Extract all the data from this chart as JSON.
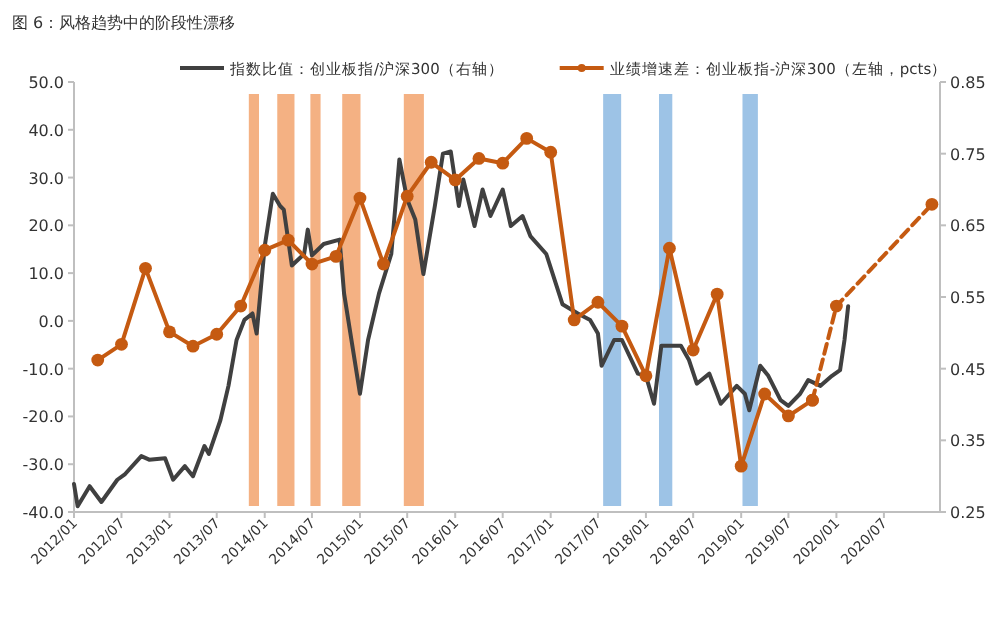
{
  "chart_data": {
    "type": "line",
    "title": "图 6：风格趋势中的阶段性漂移",
    "xlim": [
      "2012-01",
      "2021-02"
    ],
    "xticks": [
      {
        "value": "2012-01",
        "label": "2012/01"
      },
      {
        "value": "2012-07",
        "label": "2012/07"
      },
      {
        "value": "2013-01",
        "label": "2013/01"
      },
      {
        "value": "2013-07",
        "label": "2013/07"
      },
      {
        "value": "2014-01",
        "label": "2014/01"
      },
      {
        "value": "2014-07",
        "label": "2014/07"
      },
      {
        "value": "2015-01",
        "label": "2015/01"
      },
      {
        "value": "2015-07",
        "label": "2015/07"
      },
      {
        "value": "2016-01",
        "label": "2016/01"
      },
      {
        "value": "2016-07",
        "label": "2016/07"
      },
      {
        "value": "2017-01",
        "label": "2017/01"
      },
      {
        "value": "2017-07",
        "label": "2017/07"
      },
      {
        "value": "2018-01",
        "label": "2018/01"
      },
      {
        "value": "2018-07",
        "label": "2018/07"
      },
      {
        "value": "2019-01",
        "label": "2019/01"
      },
      {
        "value": "2019-07",
        "label": "2019/07"
      },
      {
        "value": "2020-01",
        "label": "2020/01"
      },
      {
        "value": "2020-07",
        "label": "2020/07"
      }
    ],
    "ylim": [
      -40,
      50
    ],
    "yticks": [
      {
        "value": 50,
        "label": "50.0"
      },
      {
        "value": 40,
        "label": "40.0"
      },
      {
        "value": 30,
        "label": "30.0"
      },
      {
        "value": 20,
        "label": "20.0"
      },
      {
        "value": 10,
        "label": "10.0"
      },
      {
        "value": 0,
        "label": "0.0"
      },
      {
        "value": -10,
        "label": "-10.0"
      },
      {
        "value": -20,
        "label": "-20.0"
      },
      {
        "value": -30,
        "label": "-30.0"
      },
      {
        "value": -40,
        "label": "-40.0"
      }
    ],
    "y2lim": [
      0.25,
      0.85
    ],
    "y2ticks": [
      0.25,
      0.35,
      0.45,
      0.55,
      0.65,
      0.75,
      0.85
    ],
    "grid": false,
    "legend": "top",
    "bands": [
      {
        "axis": "x",
        "from": "2013-11-01",
        "to": "2013-12-10",
        "color": "#f4b183"
      },
      {
        "axis": "x",
        "from": "2014-02-18",
        "to": "2014-04-25",
        "color": "#f4b183"
      },
      {
        "axis": "x",
        "from": "2014-06-25",
        "to": "2014-08-03",
        "color": "#f4b183"
      },
      {
        "axis": "x",
        "from": "2014-10-25",
        "to": "2015-01-03",
        "color": "#f4b183"
      },
      {
        "axis": "x",
        "from": "2015-06-18",
        "to": "2015-09-03",
        "color": "#f4b183"
      },
      {
        "axis": "x",
        "from": "2017-07-21",
        "to": "2017-09-28",
        "color": "#9dc3e6"
      },
      {
        "axis": "x",
        "from": "2018-02-20",
        "to": "2018-04-12",
        "color": "#9dc3e6"
      },
      {
        "axis": "x",
        "from": "2019-01-06",
        "to": "2019-03-06",
        "color": "#9dc3e6"
      }
    ],
    "series": [
      {
        "name": "指数比值：创业板指/沪深300（右轴）",
        "color": "#404040",
        "axis": "y2",
        "marker": "none",
        "line_style": "solid",
        "x": [
          "2012-01-01",
          "2012-01-15",
          "2012-03-01",
          "2012-04-15",
          "2012-06-15",
          "2012-07-15",
          "2012-09-15",
          "2012-10-15",
          "2012-12-15",
          "2013-01-15",
          "2013-03-01",
          "2013-04-01",
          "2013-05-15",
          "2013-06-01",
          "2013-07-15",
          "2013-08-15",
          "2013-09-15",
          "2013-10-15",
          "2013-11-15",
          "2013-12-01",
          "2014-01-01",
          "2014-02-01",
          "2014-03-01",
          "2014-03-15",
          "2014-04-15",
          "2014-06-01",
          "2014-06-15",
          "2014-07-01",
          "2014-08-15",
          "2014-10-15",
          "2014-11-01",
          "2015-01-01",
          "2015-02-01",
          "2015-03-15",
          "2015-05-01",
          "2015-06-01",
          "2015-07-01",
          "2015-08-01",
          "2015-09-01",
          "2015-10-15",
          "2015-11-15",
          "2015-12-15",
          "2016-01-15",
          "2016-02-01",
          "2016-03-15",
          "2016-04-15",
          "2016-05-15",
          "2016-07-01",
          "2016-08-01",
          "2016-09-15",
          "2016-10-15",
          "2016-12-15",
          "2017-02-15",
          "2017-04-15",
          "2017-06-01",
          "2017-07-01",
          "2017-07-15",
          "2017-09-01",
          "2017-10-01",
          "2017-12-01",
          "2018-01-01",
          "2018-02-01",
          "2018-03-01",
          "2018-05-15",
          "2018-06-15",
          "2018-07-15",
          "2018-09-01",
          "2018-10-15",
          "2018-12-15",
          "2019-01-15",
          "2019-02-01",
          "2019-03-15",
          "2019-04-15",
          "2019-06-01",
          "2019-07-01",
          "2019-08-15",
          "2019-09-15",
          "2019-11-01",
          "2019-12-15",
          "2020-01-15",
          "2020-02-01",
          "2020-02-15"
        ],
        "values": [
          0.289,
          0.258,
          0.286,
          0.264,
          0.295,
          0.303,
          0.328,
          0.323,
          0.325,
          0.295,
          0.314,
          0.3,
          0.342,
          0.331,
          0.378,
          0.426,
          0.49,
          0.518,
          0.527,
          0.499,
          0.621,
          0.694,
          0.677,
          0.672,
          0.594,
          0.61,
          0.644,
          0.608,
          0.624,
          0.63,
          0.555,
          0.415,
          0.49,
          0.555,
          0.61,
          0.742,
          0.686,
          0.658,
          0.582,
          0.677,
          0.75,
          0.753,
          0.677,
          0.714,
          0.649,
          0.7,
          0.663,
          0.7,
          0.649,
          0.663,
          0.635,
          0.61,
          0.54,
          0.527,
          0.518,
          0.499,
          0.454,
          0.49,
          0.49,
          0.443,
          0.44,
          0.401,
          0.482,
          0.482,
          0.462,
          0.429,
          0.443,
          0.401,
          0.426,
          0.415,
          0.392,
          0.454,
          0.44,
          0.406,
          0.398,
          0.415,
          0.434,
          0.426,
          0.44,
          0.448,
          0.49,
          0.537
        ]
      },
      {
        "name": "业绩增速差：创业板指-沪深300（左轴，pcts）",
        "color": "#c55a11",
        "marker": "circle",
        "line_style": "solid",
        "x": [
          "2012-04",
          "2012-07",
          "2012-10",
          "2013-01",
          "2013-04",
          "2013-07",
          "2013-10",
          "2014-01",
          "2014-04",
          "2014-07",
          "2014-10",
          "2015-01",
          "2015-04",
          "2015-07",
          "2015-10",
          "2016-01",
          "2016-04",
          "2016-07",
          "2016-10",
          "2017-01",
          "2017-04",
          "2017-07",
          "2017-10",
          "2018-01",
          "2018-04",
          "2018-07",
          "2018-10",
          "2019-01",
          "2019-04",
          "2019-07",
          "2019-10"
        ],
        "values": [
          -8.2,
          -4.9,
          11,
          -2.3,
          -5.3,
          -2.8,
          3.1,
          14.8,
          16.9,
          11.9,
          13.5,
          25.7,
          11.9,
          26.1,
          33.2,
          29.5,
          34,
          33,
          38.2,
          35.3,
          0.2,
          3.9,
          -1.1,
          -11.5,
          15.2,
          -6.1,
          5.6,
          -30.4,
          -15.3,
          -19.9,
          -16.6
        ]
      },
      {
        "color": "#c55a11",
        "marker": "circle",
        "line_style": "dashed",
        "x": [
          "2019-10",
          "2020-01",
          "2021-01"
        ],
        "values": [
          -16.6,
          3.1,
          24.4
        ]
      }
    ]
  }
}
